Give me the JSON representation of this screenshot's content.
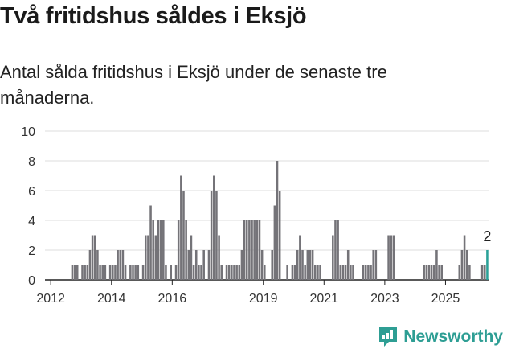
{
  "title": "Två fritidshus såldes i Eksjö",
  "subtitle": "Antal sålda fritidshus i Eksjö under de senaste tre månaderna.",
  "brand": "Newsworthy",
  "colors": {
    "bar": "#747378",
    "highlight": "#2aa198",
    "grid": "#dcdcdc",
    "axis": "#222222",
    "brand": "#2e9e94"
  },
  "chart_data": {
    "type": "bar",
    "y_ticks": [
      "0",
      "2",
      "4",
      "6",
      "8",
      "10"
    ],
    "x_ticks": [
      "2012",
      "2014",
      "2016",
      "2019",
      "2021",
      "2023",
      "2025"
    ],
    "x_tick_months": [
      0,
      24,
      48,
      84,
      108,
      132,
      156
    ],
    "ylim": [
      0,
      10
    ],
    "start_month": "2010-12",
    "values": [
      0,
      0,
      0,
      0,
      0,
      0,
      0,
      0,
      0,
      1,
      1,
      1,
      0,
      1,
      1,
      1,
      2,
      3,
      3,
      2,
      1,
      1,
      1,
      0,
      1,
      1,
      1,
      2,
      2,
      2,
      1,
      0,
      1,
      1,
      1,
      1,
      0,
      1,
      3,
      3,
      5,
      4,
      3,
      4,
      4,
      4,
      1,
      0,
      1,
      0,
      1,
      4,
      7,
      6,
      4,
      2,
      3,
      1,
      2,
      1,
      1,
      2,
      0,
      2,
      6,
      7,
      6,
      3,
      1,
      0,
      1,
      1,
      1,
      1,
      1,
      1,
      2,
      4,
      4,
      4,
      4,
      4,
      4,
      4,
      2,
      1,
      0,
      0,
      2,
      5,
      8,
      6,
      0,
      0,
      1,
      0,
      1,
      1,
      2,
      3,
      2,
      1,
      2,
      2,
      2,
      1,
      1,
      1,
      0,
      0,
      0,
      0,
      3,
      4,
      4,
      1,
      1,
      1,
      2,
      1,
      1,
      0,
      0,
      0,
      1,
      1,
      1,
      1,
      2,
      2,
      0,
      0,
      0,
      0,
      3,
      3,
      3,
      0,
      0,
      0,
      0,
      0,
      0,
      0,
      0,
      0,
      0,
      0,
      1,
      1,
      1,
      1,
      1,
      2,
      1,
      1,
      0,
      0,
      0,
      0,
      0,
      0,
      1,
      2,
      3,
      2,
      1,
      0,
      0,
      0,
      0,
      1,
      1,
      2
    ],
    "highlight_last": true,
    "last_label": "2"
  }
}
